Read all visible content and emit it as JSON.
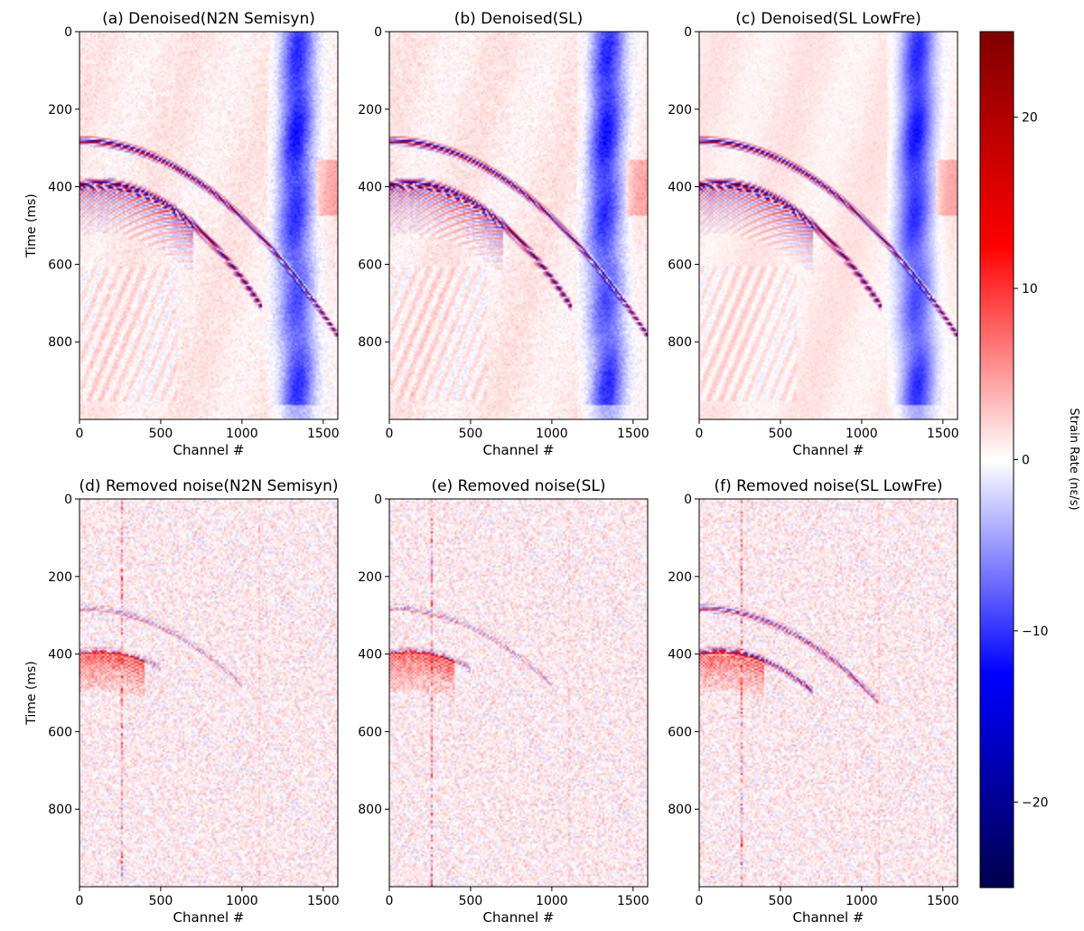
{
  "figure": {
    "colorbar": {
      "label": "Strain Rate (nε/s)",
      "ticks": [
        20,
        10,
        0,
        -10,
        -20
      ],
      "tick_labels": [
        "20",
        "10",
        "0",
        "−10",
        "−20"
      ],
      "range": [
        -25,
        25
      ],
      "colormap": "seismic",
      "colors": {
        "min": "#00004c",
        "low": "#0000ff",
        "mid": "#ffffff",
        "high": "#ff0000",
        "max": "#7f0000"
      }
    }
  },
  "chart_data": [
    {
      "type": "heatmap",
      "title": "(a) Denoised(N2N Semisyn)",
      "xlabel": "Channel #",
      "ylabel": "Time (ms)",
      "xlim": [
        0,
        1590
      ],
      "ylim": [
        1000,
        0
      ],
      "xticks": [
        "0",
        "500",
        "1000",
        "1500"
      ],
      "yticks": [
        "0",
        "200",
        "400",
        "600",
        "800"
      ],
      "variant": "denoised",
      "mode": 0
    },
    {
      "type": "heatmap",
      "title": "(b) Denoised(SL)",
      "xlabel": "Channel #",
      "ylabel": "",
      "xlim": [
        0,
        1590
      ],
      "ylim": [
        1000,
        0
      ],
      "xticks": [
        "0",
        "500",
        "1000",
        "1500"
      ],
      "yticks": [
        "0",
        "200",
        "400",
        "600",
        "800"
      ],
      "variant": "denoised",
      "mode": 1
    },
    {
      "type": "heatmap",
      "title": "(c) Denoised(SL LowFre)",
      "xlabel": "Channel #",
      "ylabel": "",
      "xlim": [
        0,
        1590
      ],
      "ylim": [
        1000,
        0
      ],
      "xticks": [
        "0",
        "500",
        "1000",
        "1500"
      ],
      "yticks": [
        "0",
        "200",
        "400",
        "600",
        "800"
      ],
      "variant": "denoised",
      "mode": 2
    },
    {
      "type": "heatmap",
      "title": "(d) Removed noise(N2N Semisyn)",
      "xlabel": "Channel #",
      "ylabel": "Time (ms)",
      "xlim": [
        0,
        1590
      ],
      "ylim": [
        1000,
        0
      ],
      "xticks": [
        "0",
        "500",
        "1000",
        "1500"
      ],
      "yticks": [
        "0",
        "200",
        "400",
        "600",
        "800"
      ],
      "variant": "noise",
      "mode": 0
    },
    {
      "type": "heatmap",
      "title": "(e) Removed noise(SL)",
      "xlabel": "Channel #",
      "ylabel": "",
      "xlim": [
        0,
        1590
      ],
      "ylim": [
        1000,
        0
      ],
      "xticks": [
        "0",
        "500",
        "1000",
        "1500"
      ],
      "yticks": [
        "0",
        "200",
        "400",
        "600",
        "800"
      ],
      "variant": "noise",
      "mode": 1
    },
    {
      "type": "heatmap",
      "title": "(f) Removed noise(SL LowFre)",
      "xlabel": "Channel #",
      "ylabel": "",
      "xlim": [
        0,
        1590
      ],
      "ylim": [
        1000,
        0
      ],
      "xticks": [
        "0",
        "500",
        "1000",
        "1500"
      ],
      "yticks": [
        "0",
        "200",
        "400",
        "600",
        "800"
      ],
      "variant": "noise",
      "mode": 2
    }
  ]
}
